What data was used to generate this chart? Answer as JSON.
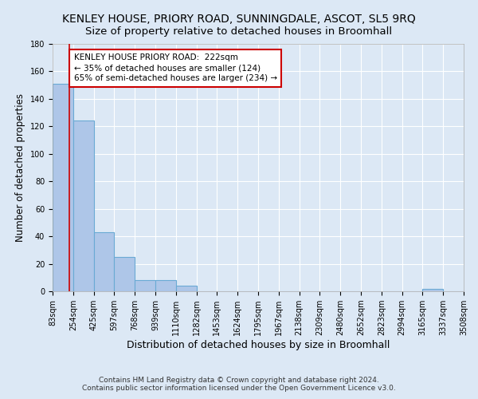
{
  "title": "KENLEY HOUSE, PRIORY ROAD, SUNNINGDALE, ASCOT, SL5 9RQ",
  "subtitle": "Size of property relative to detached houses in Broomhall",
  "xlabel": "Distribution of detached houses by size in Broomhall",
  "ylabel": "Number of detached properties",
  "bin_edges": [
    83,
    254,
    425,
    597,
    768,
    939,
    1110,
    1282,
    1453,
    1624,
    1795,
    1967,
    2138,
    2309,
    2480,
    2652,
    2823,
    2994,
    3165,
    3337,
    3508
  ],
  "bar_heights": [
    151,
    124,
    43,
    25,
    8,
    8,
    4,
    0,
    0,
    0,
    0,
    0,
    0,
    0,
    0,
    0,
    0,
    0,
    2,
    0
  ],
  "bar_color": "#aec6e8",
  "bar_edgecolor": "#6aaad4",
  "property_size": 222,
  "vline_color": "#cc0000",
  "annotation_line1": "KENLEY HOUSE PRIORY ROAD:  222sqm",
  "annotation_line2": "← 35% of detached houses are smaller (124)",
  "annotation_line3": "65% of semi-detached houses are larger (234) →",
  "annotation_boxcolor": "#ffffff",
  "annotation_edgecolor": "#cc0000",
  "ylim": [
    0,
    180
  ],
  "yticks": [
    0,
    20,
    40,
    60,
    80,
    100,
    120,
    140,
    160,
    180
  ],
  "footer1": "Contains HM Land Registry data © Crown copyright and database right 2024.",
  "footer2": "Contains public sector information licensed under the Open Government Licence v3.0.",
  "bg_color": "#dce8f5",
  "plot_bg_color": "#dce8f5",
  "grid_color": "#ffffff",
  "title_fontsize": 10,
  "subtitle_fontsize": 9.5,
  "xlabel_fontsize": 9,
  "ylabel_fontsize": 8.5,
  "tick_fontsize": 7,
  "annotation_fontsize": 7.5,
  "footer_fontsize": 6.5
}
